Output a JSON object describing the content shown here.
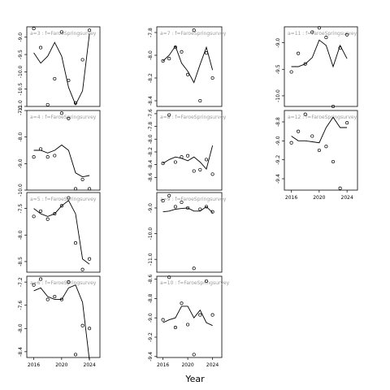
{
  "chart_data": {
    "type": "line",
    "xlabel": "Year",
    "x_ticks": [
      2016,
      2020,
      2024
    ],
    "x_range": [
      2015,
      2025.5
    ],
    "panels": [
      {
        "strip": "a=3 : f=FaroeSpringsurvey",
        "ylim": [
          -11.0,
          -8.7
        ],
        "yticks": [
          -9.0,
          -9.5,
          -10.0,
          -10.5,
          -11.0
        ],
        "fit": [
          [
            2016,
            -9.45
          ],
          [
            2017,
            -9.75
          ],
          [
            2018,
            -9.55
          ],
          [
            2019,
            -9.15
          ],
          [
            2020,
            -9.55
          ],
          [
            2021,
            -10.45
          ],
          [
            2022,
            -10.95
          ],
          [
            2023,
            -10.55
          ],
          [
            2024,
            -8.9
          ]
        ],
        "points": [
          [
            2016,
            -8.75
          ],
          [
            2017,
            -9.3
          ],
          [
            2018,
            -10.95
          ],
          [
            2019,
            -10.2
          ],
          [
            2020,
            -8.85
          ],
          [
            2021,
            -10.25
          ],
          [
            2022,
            -10.9
          ],
          [
            2023,
            -9.65
          ],
          [
            2024,
            -8.8
          ]
        ]
      },
      {
        "strip": "a=4 : f=FaroeSpringsurvey",
        "ylim": [
          -10.0,
          -7.0
        ],
        "yticks": [
          -7.0,
          -8.0,
          -9.0,
          -10.0
        ],
        "fit": [
          [
            2016,
            -8.5
          ],
          [
            2017,
            -8.5
          ],
          [
            2018,
            -8.6
          ],
          [
            2019,
            -8.5
          ],
          [
            2020,
            -8.3
          ],
          [
            2021,
            -8.5
          ],
          [
            2022,
            -9.35
          ],
          [
            2023,
            -9.5
          ],
          [
            2024,
            -9.45
          ]
        ],
        "points": [
          [
            2016,
            -8.75
          ],
          [
            2017,
            -8.45
          ],
          [
            2018,
            -8.75
          ],
          [
            2019,
            -8.7
          ],
          [
            2020,
            -7.1
          ],
          [
            2021,
            -7.3
          ],
          [
            2022,
            -9.95
          ],
          [
            2023,
            -9.6
          ],
          [
            2024,
            -9.95
          ]
        ]
      },
      {
        "strip": "a=5 : f=FaroeSpringsurvey",
        "ylim": [
          -8.7,
          -7.2
        ],
        "yticks": [
          -7.5,
          -8.0,
          -8.5
        ],
        "fit": [
          [
            2016,
            -7.5
          ],
          [
            2017,
            -7.6
          ],
          [
            2018,
            -7.65
          ],
          [
            2019,
            -7.6
          ],
          [
            2020,
            -7.45
          ],
          [
            2021,
            -7.35
          ],
          [
            2022,
            -7.6
          ],
          [
            2023,
            -8.45
          ],
          [
            2024,
            -8.55
          ]
        ],
        "points": [
          [
            2016,
            -7.65
          ],
          [
            2017,
            -7.55
          ],
          [
            2018,
            -7.7
          ],
          [
            2019,
            -7.6
          ],
          [
            2020,
            -7.45
          ],
          [
            2021,
            -7.3
          ],
          [
            2022,
            -8.15
          ],
          [
            2023,
            -8.65
          ],
          [
            2024,
            -8.45
          ]
        ]
      },
      {
        "strip": "a=6 : f=FaroeSpringsurvey",
        "ylim": [
          -8.5,
          -7.1
        ],
        "yticks": [
          -7.2,
          -7.6,
          -8.0,
          -8.4
        ],
        "fit": [
          [
            2016,
            -7.35
          ],
          [
            2017,
            -7.3
          ],
          [
            2018,
            -7.45
          ],
          [
            2019,
            -7.5
          ],
          [
            2020,
            -7.5
          ],
          [
            2021,
            -7.3
          ],
          [
            2022,
            -7.25
          ],
          [
            2023,
            -7.55
          ],
          [
            2024,
            -8.55
          ]
        ],
        "points": [
          [
            2016,
            -7.25
          ],
          [
            2017,
            -7.15
          ],
          [
            2018,
            -7.5
          ],
          [
            2019,
            -7.45
          ],
          [
            2020,
            -7.5
          ],
          [
            2021,
            -7.2
          ],
          [
            2022,
            -8.45
          ],
          [
            2023,
            -7.95
          ],
          [
            2024,
            -8.0
          ]
        ]
      },
      {
        "strip": "a=7 : f=FaroeSpringsurvey",
        "ylim": [
          -8.45,
          -7.75
        ],
        "yticks": [
          -7.8,
          -8.0,
          -8.2,
          -8.4
        ],
        "fit": [
          [
            2016,
            -8.05
          ],
          [
            2017,
            -8.0
          ],
          [
            2018,
            -7.92
          ],
          [
            2019,
            -8.07
          ],
          [
            2020,
            -8.14
          ],
          [
            2021,
            -8.24
          ],
          [
            2022,
            -8.08
          ],
          [
            2023,
            -7.93
          ],
          [
            2024,
            -8.13
          ]
        ],
        "points": [
          [
            2016,
            -8.05
          ],
          [
            2017,
            -8.03
          ],
          [
            2018,
            -7.93
          ],
          [
            2019,
            -7.97
          ],
          [
            2020,
            -8.17
          ],
          [
            2021,
            -7.78
          ],
          [
            2022,
            -8.4
          ],
          [
            2023,
            -7.98
          ],
          [
            2024,
            -8.2
          ]
        ]
      },
      {
        "strip": "a=8 : f=FaroeSpringsurvey",
        "ylim": [
          -8.8,
          -7.55
        ],
        "yticks": [
          -7.6,
          -7.8,
          -8.0,
          -8.2,
          -8.4,
          -8.6
        ],
        "fit": [
          [
            2016,
            -8.38
          ],
          [
            2017,
            -8.32
          ],
          [
            2018,
            -8.28
          ],
          [
            2019,
            -8.3
          ],
          [
            2020,
            -8.34
          ],
          [
            2021,
            -8.28
          ],
          [
            2022,
            -8.36
          ],
          [
            2023,
            -8.47
          ],
          [
            2024,
            -8.1
          ]
        ],
        "points": [
          [
            2016,
            -8.38
          ],
          [
            2017,
            -7.62
          ],
          [
            2018,
            -8.36
          ],
          [
            2019,
            -8.28
          ],
          [
            2020,
            -8.26
          ],
          [
            2021,
            -8.5
          ],
          [
            2022,
            -8.48
          ],
          [
            2023,
            -8.32
          ],
          [
            2024,
            -8.55
          ]
        ]
      },
      {
        "strip": "a=9 : f=FaroeSpringsurvey",
        "ylim": [
          -11.5,
          -8.4
        ],
        "yticks": [
          -9.0,
          -10.0,
          -11.0
        ],
        "fit": [
          [
            2016,
            -9.15
          ],
          [
            2017,
            -9.12
          ],
          [
            2018,
            -9.05
          ],
          [
            2019,
            -9.02
          ],
          [
            2020,
            -9.0
          ],
          [
            2021,
            -9.12
          ],
          [
            2022,
            -9.12
          ],
          [
            2023,
            -8.95
          ],
          [
            2024,
            -9.18
          ]
        ],
        "points": [
          [
            2016,
            -8.72
          ],
          [
            2017,
            -8.52
          ],
          [
            2018,
            -8.95
          ],
          [
            2019,
            -8.78
          ],
          [
            2020,
            -9.0
          ],
          [
            2021,
            -11.35
          ],
          [
            2022,
            -9.05
          ],
          [
            2023,
            -8.95
          ],
          [
            2024,
            -9.15
          ]
        ]
      },
      {
        "strip": "a=10 : f=FaroeSpringsurvey",
        "ylim": [
          -9.41,
          -8.57
        ],
        "yticks": [
          -8.6,
          -8.8,
          -9.0,
          -9.2,
          -9.4
        ],
        "fit": [
          [
            2016,
            -9.05
          ],
          [
            2017,
            -9.02
          ],
          [
            2018,
            -9.0
          ],
          [
            2019,
            -8.88
          ],
          [
            2020,
            -8.88
          ],
          [
            2021,
            -9.0
          ],
          [
            2022,
            -8.92
          ],
          [
            2023,
            -9.05
          ],
          [
            2024,
            -9.08
          ]
        ],
        "points": [
          [
            2016,
            -9.02
          ],
          [
            2017,
            -8.58
          ],
          [
            2018,
            -9.1
          ],
          [
            2019,
            -8.85
          ],
          [
            2020,
            -9.07
          ],
          [
            2021,
            -9.38
          ],
          [
            2022,
            -8.97
          ],
          [
            2023,
            -8.62
          ],
          [
            2024,
            -8.97
          ]
        ]
      },
      {
        "strip": "a=11 : f=FaroeSpringsurvey",
        "ylim": [
          -10.2,
          -8.7
        ],
        "yticks": [
          -9.0,
          -9.5,
          -10.0
        ],
        "fit": [
          [
            2016,
            -9.45
          ],
          [
            2017,
            -9.45
          ],
          [
            2018,
            -9.4
          ],
          [
            2019,
            -9.28
          ],
          [
            2020,
            -8.95
          ],
          [
            2021,
            -9.05
          ],
          [
            2022,
            -9.45
          ],
          [
            2023,
            -9.05
          ],
          [
            2024,
            -9.3
          ]
        ],
        "points": [
          [
            2016,
            -9.55
          ],
          [
            2017,
            -9.2
          ],
          [
            2018,
            -9.4
          ],
          [
            2019,
            -8.8
          ],
          [
            2020,
            -8.72
          ],
          [
            2021,
            -8.9
          ],
          [
            2022,
            -10.2
          ],
          [
            2023,
            -9.1
          ],
          [
            2024,
            -8.85
          ]
        ]
      },
      {
        "strip": "a=12 : f=FaroeSpringsurvey",
        "ylim": [
          -9.52,
          -8.68
        ],
        "yticks": [
          -8.8,
          -9.0,
          -9.2,
          -9.4
        ],
        "fit": [
          [
            2016,
            -8.95
          ],
          [
            2017,
            -9.0
          ],
          [
            2018,
            -9.0
          ],
          [
            2019,
            -9.01
          ],
          [
            2020,
            -9.02
          ],
          [
            2021,
            -8.86
          ],
          [
            2022,
            -8.75
          ],
          [
            2023,
            -8.86
          ],
          [
            2024,
            -8.86
          ]
        ],
        "points": [
          [
            2016,
            -9.02
          ],
          [
            2017,
            -8.9
          ],
          [
            2018,
            -8.72
          ],
          [
            2019,
            -8.95
          ],
          [
            2020,
            -9.1
          ],
          [
            2021,
            -9.06
          ],
          [
            2022,
            -9.22
          ],
          [
            2023,
            -9.5
          ],
          [
            2024,
            -8.81
          ]
        ]
      }
    ]
  }
}
